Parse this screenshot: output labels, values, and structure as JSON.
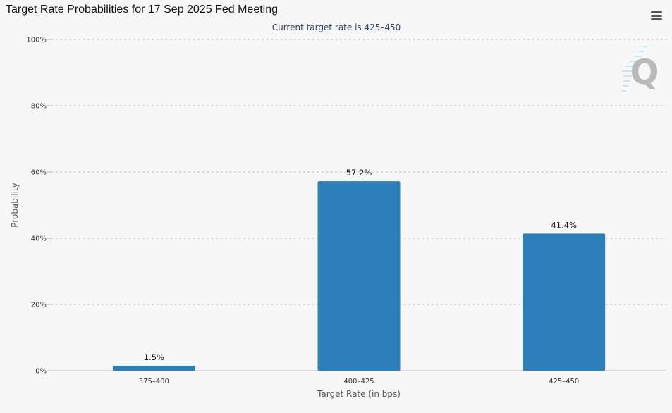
{
  "header": {
    "title": "Target Rate Probabilities for 17 Sep 2025 Fed Meeting",
    "menu_icon": "hamburger-menu-icon"
  },
  "watermark": {
    "letter": "Q",
    "icon": "quikstrike-logo-icon"
  },
  "colors": {
    "bar": "#2b80b9",
    "grid": "#cccccc",
    "background": "#f7f7f7",
    "subtitle": "#2c3e66"
  },
  "chart_data": {
    "type": "bar",
    "title": "Target Rate Probabilities for 17 Sep 2025 Fed Meeting",
    "subtitle": "Current target rate is 425–450",
    "categories": [
      "375–400",
      "400–425",
      "425–450"
    ],
    "values": [
      1.5,
      57.2,
      41.4
    ],
    "data_labels": [
      "1.5%",
      "57.2%",
      "41.4%"
    ],
    "xlabel": "Target Rate (in bps)",
    "ylabel": "Probability",
    "ylim": [
      0,
      100
    ],
    "yticks": [
      0,
      20,
      40,
      60,
      80,
      100
    ],
    "ytick_labels": [
      "0%",
      "20%",
      "40%",
      "60%",
      "80%",
      "100%"
    ],
    "grid": "horizontal dotted",
    "legend": "none"
  }
}
